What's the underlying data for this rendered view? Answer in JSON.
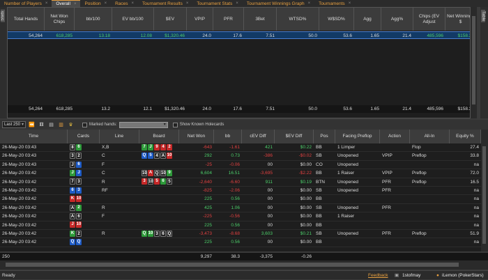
{
  "tabs": [
    {
      "label": "Number of Players",
      "active": false
    },
    {
      "label": "Overall",
      "active": true
    },
    {
      "label": "Position",
      "active": false
    },
    {
      "label": "Races",
      "active": false
    },
    {
      "label": "Tournament Results",
      "active": false
    },
    {
      "label": "Tournament Stats",
      "active": false
    },
    {
      "label": "Tournament Winnings Graph",
      "active": false
    },
    {
      "label": "Tournaments",
      "active": false
    }
  ],
  "left_strip": "Stats",
  "right_strip": "Table",
  "stats": {
    "headers": [
      "Total Hands",
      "Net Won Chips",
      "bb/100",
      "EV bb/100",
      "$EV",
      "VPIP",
      "PFR",
      "3Bet",
      "WTSD%",
      "W$SD%",
      "Agg",
      "Agg%",
      "Chips (EV Adjust",
      "Net Winnings $"
    ],
    "row": [
      "54,264",
      "618,285",
      "13.18",
      "12.08",
      "$1,320.46",
      "24.0",
      "17.6",
      "7.51",
      "50.0",
      "53.6",
      "1.65",
      "21.4",
      "485,596",
      "$158.35"
    ],
    "totals": [
      "54,264",
      "618,285",
      "13.2",
      "12.1",
      "$1,320.46",
      "24.0",
      "17.6",
      "7.51",
      "50.0",
      "53.6",
      "1.65",
      "21.4",
      "485,596",
      "$158.35"
    ]
  },
  "toolbar": {
    "limit": "Last 250",
    "marked_label": "Marked hands:",
    "known_label": "Show Known Holecards"
  },
  "hands": {
    "headers": [
      "Time",
      "Cards",
      "Line",
      "Board",
      "Net Won",
      "bb",
      "cEV Diff",
      "$EV Diff",
      "Pos",
      "Facing Preflop",
      "Action",
      "All-In",
      "Equity %"
    ],
    "rows": [
      {
        "time": "26-May-20 03:43",
        "cards": [
          [
            "8",
            "s"
          ],
          [
            "6",
            "cl"
          ]
        ],
        "line": "X,B",
        "board": [
          [
            "7",
            "cl"
          ],
          [
            "J",
            "cl"
          ],
          [
            "9",
            "h"
          ],
          [
            "4",
            "h"
          ],
          [
            "2",
            "h"
          ]
        ],
        "net": "-643",
        "bb": "-1.61",
        "cev": "421",
        "sev": "$0.22",
        "pos": "BB",
        "facing": "1 Limper",
        "action": "",
        "allin": "Flop",
        "eq": "27.4"
      },
      {
        "time": "26-May-20 03:43",
        "cards": [
          [
            "3",
            "s"
          ],
          [
            "2",
            "s"
          ]
        ],
        "line": "C",
        "board": [
          [
            "Q",
            "d"
          ],
          [
            "5",
            "d"
          ],
          [
            "4",
            "s"
          ],
          [
            "A",
            "s"
          ],
          [
            "10",
            "h"
          ]
        ],
        "net": "292",
        "bb": "0.73",
        "cev": "-386",
        "sev": "-$0.02",
        "pos": "SB",
        "facing": "Unopened",
        "action": "VPIP",
        "allin": "Preflop",
        "eq": "33.8"
      },
      {
        "time": "26-May-20 03:43",
        "cards": [
          [
            "J",
            "s"
          ],
          [
            "6",
            "d"
          ]
        ],
        "line": "F",
        "board": [],
        "net": "-25",
        "bb": "-0.06",
        "cev": "00",
        "sev": "$0.00",
        "pos": "CO",
        "facing": "Unopened",
        "action": "",
        "allin": "",
        "eq": "na"
      },
      {
        "time": "26-May-20 03:42",
        "cards": [
          [
            "J",
            "cl"
          ],
          [
            "J",
            "d"
          ]
        ],
        "line": "C",
        "board": [
          [
            "10",
            "s"
          ],
          [
            "A",
            "h"
          ],
          [
            "Q",
            "s"
          ],
          [
            "10",
            "s"
          ],
          [
            "9",
            "cl"
          ]
        ],
        "net": "6,604",
        "bb": "16.51",
        "cev": "-3,695",
        "sev": "-$2.22",
        "pos": "BB",
        "facing": "1 Raiser",
        "action": "VPIP",
        "allin": "Preflop",
        "eq": "72.0"
      },
      {
        "time": "26-May-20 03:42",
        "cards": [
          [
            "7",
            "s"
          ],
          [
            "3",
            "s"
          ]
        ],
        "line": "R",
        "board": [
          [
            "3",
            "h"
          ],
          [
            "10",
            "s"
          ],
          [
            "5",
            "h"
          ],
          [
            "6",
            "cl"
          ],
          [
            "5",
            "s"
          ]
        ],
        "net": "-2,640",
        "bb": "-6.60",
        "cev": "911",
        "sev": "$0.19",
        "pos": "BTN",
        "facing": "Unopened",
        "action": "PFR",
        "allin": "Preflop",
        "eq": "16.5"
      },
      {
        "time": "26-May-20 03:42",
        "cards": [
          [
            "6",
            "d"
          ],
          [
            "3",
            "d"
          ]
        ],
        "line": "RF",
        "board": [],
        "net": "-825",
        "bb": "-2.06",
        "cev": "00",
        "sev": "$0.00",
        "pos": "SB",
        "facing": "Unopened",
        "action": "PFR",
        "allin": "",
        "eq": "na"
      },
      {
        "time": "26-May-20 03:42",
        "cards": [
          [
            "K",
            "h"
          ],
          [
            "10",
            "h"
          ]
        ],
        "line": "",
        "board": [],
        "net": "225",
        "bb": "0.56",
        "cev": "00",
        "sev": "$0.00",
        "pos": "BB",
        "facing": "",
        "action": "",
        "allin": "",
        "eq": "na"
      },
      {
        "time": "26-May-20 03:42",
        "cards": [
          [
            "A",
            "s"
          ],
          [
            "2",
            "cl"
          ]
        ],
        "line": "R",
        "board": [],
        "net": "425",
        "bb": "1.06",
        "cev": "00",
        "sev": "$0.00",
        "pos": "SB",
        "facing": "Unopened",
        "action": "PFR",
        "allin": "",
        "eq": "na"
      },
      {
        "time": "26-May-20 03:42",
        "cards": [
          [
            "A",
            "s"
          ],
          [
            "6",
            "s"
          ]
        ],
        "line": "F",
        "board": [],
        "net": "-225",
        "bb": "-0.56",
        "cev": "00",
        "sev": "$0.00",
        "pos": "BB",
        "facing": "1 Raiser",
        "action": "",
        "allin": "",
        "eq": "na"
      },
      {
        "time": "26-May-20 03:42",
        "cards": [
          [
            "J",
            "h"
          ],
          [
            "10",
            "h"
          ]
        ],
        "line": "",
        "board": [],
        "net": "225",
        "bb": "0.56",
        "cev": "00",
        "sev": "$0.00",
        "pos": "BB",
        "facing": "",
        "action": "",
        "allin": "",
        "eq": "na"
      },
      {
        "time": "26-May-20 03:42",
        "cards": [
          [
            "K",
            "cl"
          ],
          [
            "2",
            "s"
          ]
        ],
        "line": "R",
        "board": [
          [
            "Q",
            "cl"
          ],
          [
            "10",
            "cl"
          ],
          [
            "3",
            "s"
          ],
          [
            "6",
            "s"
          ],
          [
            "Q",
            "s"
          ]
        ],
        "net": "-3,473",
        "bb": "-8.68",
        "cev": "3,603",
        "sev": "$0.21",
        "pos": "SB",
        "facing": "Unopened",
        "action": "PFR",
        "allin": "Preflop",
        "eq": "51.9"
      },
      {
        "time": "26-May-20 03:42",
        "cards": [
          [
            "Q",
            "d"
          ],
          [
            "Q",
            "d"
          ]
        ],
        "line": "",
        "board": [],
        "net": "225",
        "bb": "0.56",
        "cev": "00",
        "sev": "$0.00",
        "pos": "BB",
        "facing": "",
        "action": "",
        "allin": "",
        "eq": "na"
      }
    ],
    "totals": {
      "count": "250",
      "net": "9,297",
      "bb": "38.3",
      "cev": "-3,375",
      "sev": "-0.26"
    }
  },
  "status": {
    "left": "Ready",
    "feedback": "Feedback",
    "user": "1stofmay",
    "player": "iLemon (PokerStars)"
  },
  "colors": {
    "accent": "#e8a040",
    "positive": "#4ccf6a",
    "negative": "#e04040",
    "selected_row": "#123a66"
  }
}
